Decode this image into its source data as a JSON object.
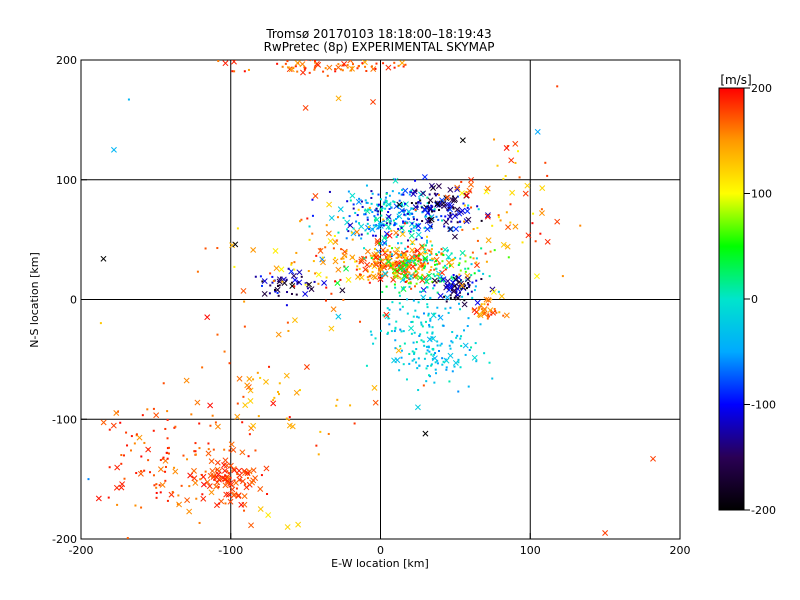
{
  "chart_data": {
    "type": "scatter",
    "title": "Tromsø 20170103 18:18:00–18:19:43",
    "subtitle": "RwPretec (8p) EXPERIMENTAL SKYMAP",
    "xlabel": "E-W location [km]",
    "ylabel": "N-S location [km]",
    "xlim": [
      -200,
      200
    ],
    "ylim": [
      -200,
      200
    ],
    "xticks": [
      -200,
      -100,
      0,
      100,
      200
    ],
    "yticks": [
      -200,
      -100,
      0,
      100,
      200
    ],
    "grid": true,
    "colorbar": {
      "label": "[m/s]",
      "min": -200,
      "max": 200,
      "ticks": [
        200,
        100,
        0,
        -100,
        -200
      ],
      "colors": [
        "#000000",
        "#2a0055",
        "#0000ff",
        "#00aaff",
        "#00e5cc",
        "#00ff00",
        "#ffff00",
        "#ff9900",
        "#ff0000"
      ]
    },
    "clusters": [
      {
        "x": 10,
        "y": 70,
        "sx": 20,
        "sy": 12,
        "n": 260,
        "vmin": -130,
        "vmax": 20,
        "cross": 0.2
      },
      {
        "x": 40,
        "y": 75,
        "sx": 12,
        "sy": 10,
        "n": 90,
        "vmin": -200,
        "vmax": -80,
        "cross": 0.45
      },
      {
        "x": 12,
        "y": 30,
        "sx": 18,
        "sy": 8,
        "n": 230,
        "vmin": 120,
        "vmax": 200,
        "cross": 0.35
      },
      {
        "x": 35,
        "y": 25,
        "sx": 22,
        "sy": 10,
        "n": 140,
        "vmin": -30,
        "vmax": 80,
        "cross": 0.15
      },
      {
        "x": 50,
        "y": 10,
        "sx": 10,
        "sy": 6,
        "n": 60,
        "vmin": -200,
        "vmax": -90,
        "cross": 0.4
      },
      {
        "x": 30,
        "y": -30,
        "sx": 18,
        "sy": 22,
        "n": 200,
        "vmin": -60,
        "vmax": 10,
        "cross": 0.1
      },
      {
        "x": -60,
        "y": 12,
        "sx": 15,
        "sy": 6,
        "n": 50,
        "vmin": -200,
        "vmax": -80,
        "cross": 0.35
      },
      {
        "x": -20,
        "y": 35,
        "sx": 35,
        "sy": 18,
        "n": 90,
        "vmin": 100,
        "vmax": 200,
        "cross": 0.2
      },
      {
        "x": -100,
        "y": -150,
        "sx": 10,
        "sy": 12,
        "n": 90,
        "vmin": 160,
        "vmax": 200,
        "cross": 0.7
      },
      {
        "x": -140,
        "y": -135,
        "sx": 25,
        "sy": 25,
        "n": 130,
        "vmin": 150,
        "vmax": 200,
        "cross": 0.25
      },
      {
        "x": -40,
        "y": 195,
        "sx": 30,
        "sy": 4,
        "n": 80,
        "vmin": 140,
        "vmax": 200,
        "cross": 0.25
      },
      {
        "x": 70,
        "y": -10,
        "sx": 5,
        "sy": 5,
        "n": 40,
        "vmin": 130,
        "vmax": 200,
        "cross": 0.4
      },
      {
        "x": 80,
        "y": 70,
        "sx": 20,
        "sy": 25,
        "n": 70,
        "vmin": 100,
        "vmax": 200,
        "cross": 0.3
      },
      {
        "x": -60,
        "y": -60,
        "sx": 40,
        "sy": 40,
        "n": 70,
        "vmin": 120,
        "vmax": 200,
        "cross": 0.3
      }
    ],
    "isolated_points": [
      {
        "x": 105,
        "y": 140,
        "v": -50,
        "m": "x"
      },
      {
        "x": -178,
        "y": 125,
        "v": -40,
        "m": "x"
      },
      {
        "x": -185,
        "y": 34,
        "v": -200,
        "m": "x"
      },
      {
        "x": -97,
        "y": 46,
        "v": -200,
        "m": "x"
      },
      {
        "x": 182,
        "y": -133,
        "v": 180,
        "m": "x"
      },
      {
        "x": 118,
        "y": 65,
        "v": 180,
        "m": "x"
      },
      {
        "x": 150,
        "y": -195,
        "v": 180,
        "m": "x"
      },
      {
        "x": 30,
        "y": -112,
        "v": -200,
        "m": "x"
      },
      {
        "x": 25,
        "y": -90,
        "v": -20,
        "m": "x"
      },
      {
        "x": 55,
        "y": 133,
        "v": -200,
        "m": "x"
      },
      {
        "x": -62,
        "y": -190,
        "v": 120,
        "m": "x"
      },
      {
        "x": -55,
        "y": -188,
        "v": 120,
        "m": "x"
      },
      {
        "x": -80,
        "y": -175,
        "v": 130,
        "m": "x"
      },
      {
        "x": -75,
        "y": -180,
        "v": 110,
        "m": "x"
      },
      {
        "x": -28,
        "y": 168,
        "v": 140,
        "m": "x"
      },
      {
        "x": -50,
        "y": 160,
        "v": 180,
        "m": "x"
      },
      {
        "x": -5,
        "y": 165,
        "v": 180,
        "m": "x"
      },
      {
        "x": 108,
        "y": 93,
        "v": 120,
        "m": "x"
      },
      {
        "x": 90,
        "y": 130,
        "v": 180,
        "m": "x"
      },
      {
        "x": 118,
        "y": 178,
        "v": 180,
        "m": "d"
      },
      {
        "x": -168,
        "y": 167,
        "v": -40,
        "m": "d"
      },
      {
        "x": -195,
        "y": -150,
        "v": -60,
        "m": "d"
      }
    ]
  }
}
